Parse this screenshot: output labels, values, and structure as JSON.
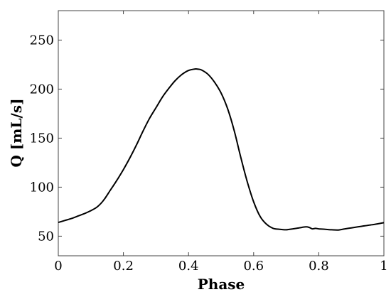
{
  "chart_data": {
    "type": "line",
    "xlabel": "Phase",
    "ylabel": "Q [mL/s]",
    "xlim": [
      0,
      1
    ],
    "ylim": [
      30,
      280
    ],
    "xticks": [
      0,
      0.2,
      0.4,
      0.6,
      0.8,
      1
    ],
    "xtick_labels": [
      "0",
      "0.2",
      "0.4",
      "0.6",
      "0.8",
      "1"
    ],
    "yticks": [
      50,
      100,
      150,
      200,
      250
    ],
    "ytick_labels": [
      "50",
      "100",
      "150",
      "200",
      "250"
    ],
    "grid": false,
    "legend": "none",
    "colors": {
      "line": "#000000",
      "frame": "#444444"
    },
    "series": [
      {
        "x": [
          0,
          0.02,
          0.04,
          0.06,
          0.08,
          0.1,
          0.12,
          0.14,
          0.16,
          0.18,
          0.2,
          0.22,
          0.24,
          0.26,
          0.28,
          0.3,
          0.32,
          0.34,
          0.36,
          0.38,
          0.4,
          0.42,
          0.43,
          0.44,
          0.46,
          0.48,
          0.5,
          0.52,
          0.54,
          0.56,
          0.58,
          0.6,
          0.62,
          0.64,
          0.66,
          0.68,
          0.7,
          0.72,
          0.74,
          0.76,
          0.77,
          0.78,
          0.79,
          0.8,
          0.82,
          0.84,
          0.86,
          0.88,
          0.9,
          0.92,
          0.94,
          0.96,
          0.98,
          1.0
        ],
        "y": [
          64,
          66,
          68,
          70.5,
          73,
          76,
          80,
          87,
          97,
          107,
          118,
          130,
          143,
          157,
          170,
          181,
          192,
          201,
          209,
          215,
          219,
          220.5,
          220.3,
          219.5,
          215,
          207,
          196,
          180,
          158,
          131,
          106,
          85,
          70,
          62,
          58,
          57,
          56.5,
          57.5,
          58.5,
          59.5,
          59,
          57.5,
          58,
          57.5,
          57,
          56.5,
          56.3,
          57.5,
          58.5,
          59.5,
          60.5,
          61.5,
          62.5,
          63.8
        ]
      }
    ]
  }
}
